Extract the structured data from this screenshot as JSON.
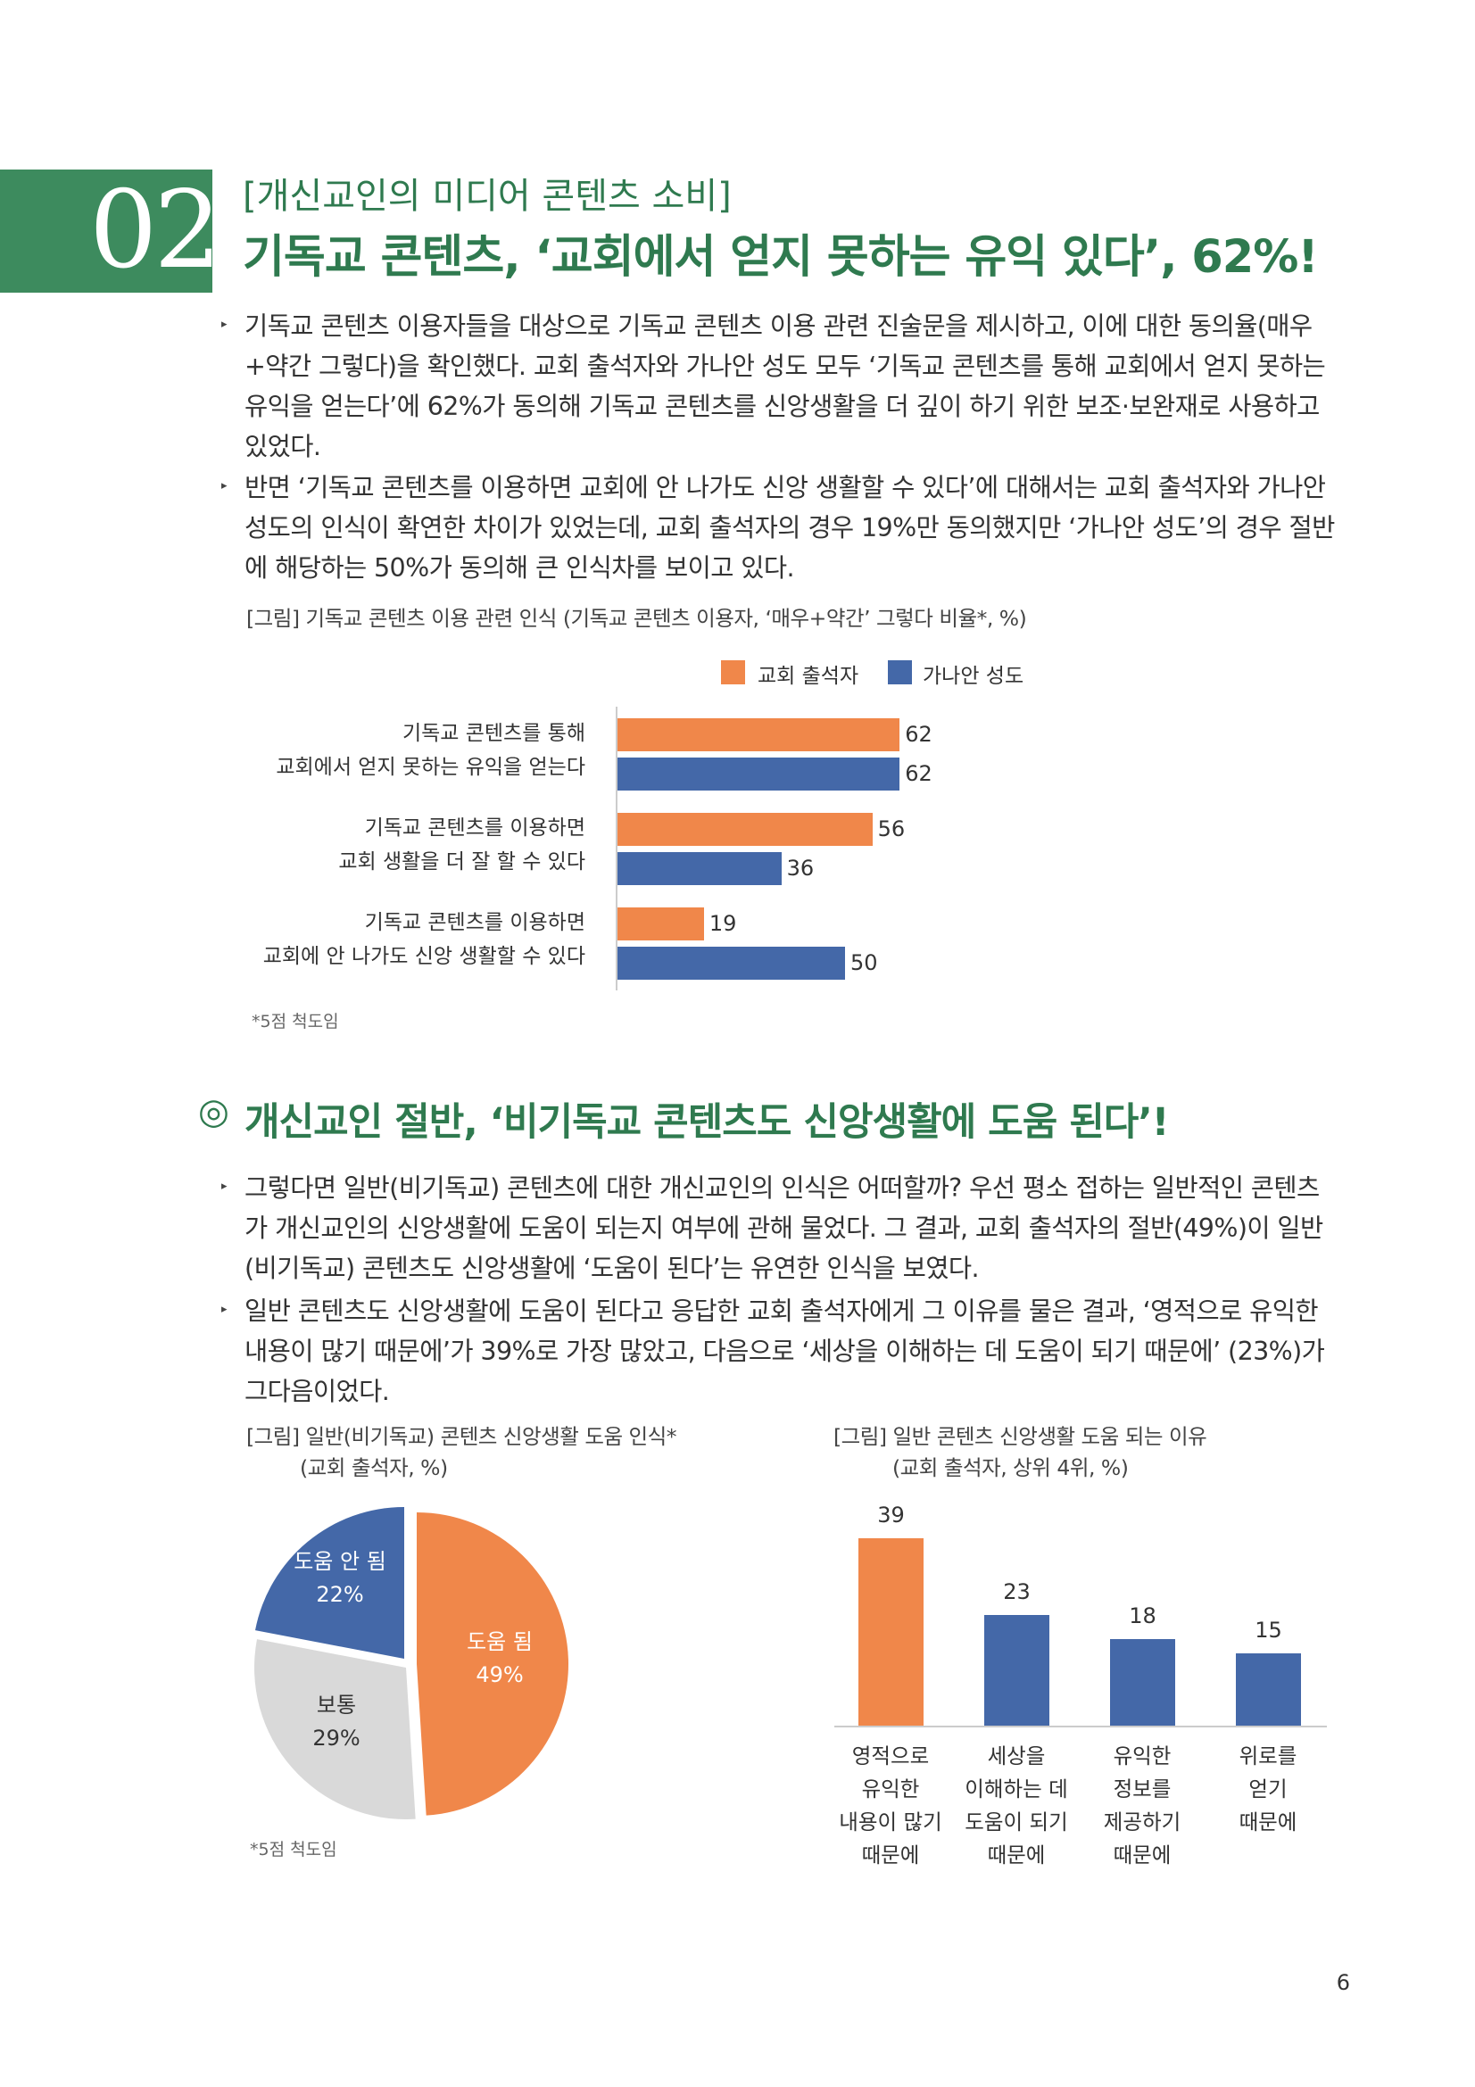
{
  "header": {
    "number": "02",
    "kicker": "[개신교인의 미디어 콘텐츠 소비]",
    "title": "기독교 콘텐츠, ‘교회에서 얻지 못하는 유익 있다’, 62%!"
  },
  "section1": {
    "paragraphs": [
      "기독교 콘텐츠 이용자들을 대상으로 기독교 콘텐츠 이용 관련 진술문을 제시하고, 이에 대한 동의율(매우+약간 그렇다)을 확인했다. 교회 출석자와 가나안 성도 모두 ‘기독교 콘텐츠를 통해 교회에서 얻지 못하는 유익을 얻는다’에 62%가 동의해 기독교 콘텐츠를 신앙생활을 더 깊이 하기 위한 보조·보완재로 사용하고 있었다.",
      "반면 ‘기독교 콘텐츠를 이용하면 교회에 안 나가도 신앙 생활할 수 있다’에 대해서는 교회 출석자와 가나안 성도의 인식이 확연한 차이가 있었는데, 교회 출석자의 경우 19%만 동의했지만 ‘가나안 성도’의 경우 절반에 해당하는 50%가 동의해 큰 인식차를 보이고 있다."
    ],
    "figure_caption": "[그림] 기독교 콘텐츠 이용 관련 인식 (기독교 콘텐츠 이용자, ‘매우+약간’ 그렇다 비율*, %)",
    "note": "*5점 척도임"
  },
  "section2": {
    "icon": "◎",
    "title": "개신교인 절반, ‘비기독교 콘텐츠도 신앙생활에 도움 된다’!",
    "paragraphs": [
      "그렇다면 일반(비기독교) 콘텐츠에 대한 개신교인의 인식은 어떠할까? 우선 평소 접하는 일반적인 콘텐츠가 개신교인의 신앙생활에 도움이 되는지 여부에 관해 물었다. 그 결과, 교회 출석자의 절반(49%)이 일반(비기독교) 콘텐츠도 신앙생활에 ‘도움이 된다’는 유연한 인식을 보였다.",
      "일반 콘텐츠도 신앙생활에 도움이 된다고 응답한 교회 출석자에게 그 이유를 물은 결과, ‘영적으로 유익한 내용이 많기 때문에’가 39%로 가장 많았고, 다음으로 ‘세상을 이해하는 데 도움이 되기 때문에’ (23%)가 그다음이었다."
    ],
    "pie_caption_1": "[그림] 일반(비기독교) 콘텐츠 신앙생활 도움 인식*",
    "pie_caption_2": "(교회 출석자, %)",
    "pie_note": "*5점 척도임",
    "bar_caption_1": "[그림] 일반 콘텐츠 신앙생활 도움 되는 이유",
    "bar_caption_2": "(교회 출석자, 상위 4위, %)"
  },
  "page_number": "6",
  "colors": {
    "orange": "#f0874a",
    "blue": "#4468a8",
    "gray": "#d9d9d9",
    "green": "#2f7a4f"
  },
  "chart_data": [
    {
      "type": "bar",
      "orientation": "horizontal",
      "categories": [
        [
          "기독교 콘텐츠를 통해",
          "교회에서 얻지 못하는 유익을 얻는다"
        ],
        [
          "기독교 콘텐츠를 이용하면",
          "교회 생활을 더 잘 할 수 있다"
        ],
        [
          "기독교 콘텐츠를 이용하면",
          "교회에 안 나가도 신앙 생활할 수 있다"
        ]
      ],
      "series": [
        {
          "name": "교회 출석자",
          "values": [
            62,
            56,
            19
          ],
          "color": "#f0874a"
        },
        {
          "name": "가나안 성도",
          "values": [
            62,
            36,
            50
          ],
          "color": "#4468a8"
        }
      ],
      "xlim": [
        0,
        100
      ],
      "legend": "top-center"
    },
    {
      "type": "pie",
      "slices": [
        {
          "label": "도움 됨",
          "value": 49,
          "display": "49%",
          "color": "#f0874a"
        },
        {
          "label": "보통",
          "value": 29,
          "display": "29%",
          "color": "#d9d9d9"
        },
        {
          "label": "도움 안 됨",
          "value": 22,
          "display": "22%",
          "color": "#4468a8"
        }
      ]
    },
    {
      "type": "bar",
      "orientation": "vertical",
      "categories": [
        [
          "영적으로",
          "유익한",
          "내용이 많기",
          "때문에"
        ],
        [
          "세상을",
          "이해하는 데",
          "도움이 되기",
          "때문에"
        ],
        [
          "유익한",
          "정보를",
          "제공하기",
          "때문에"
        ],
        [
          "위로를",
          "얻기",
          "때문에"
        ]
      ],
      "values": [
        39,
        23,
        18,
        15
      ],
      "colors": [
        "#f0874a",
        "#4468a8",
        "#4468a8",
        "#4468a8"
      ],
      "ylim": [
        0,
        39
      ]
    }
  ]
}
